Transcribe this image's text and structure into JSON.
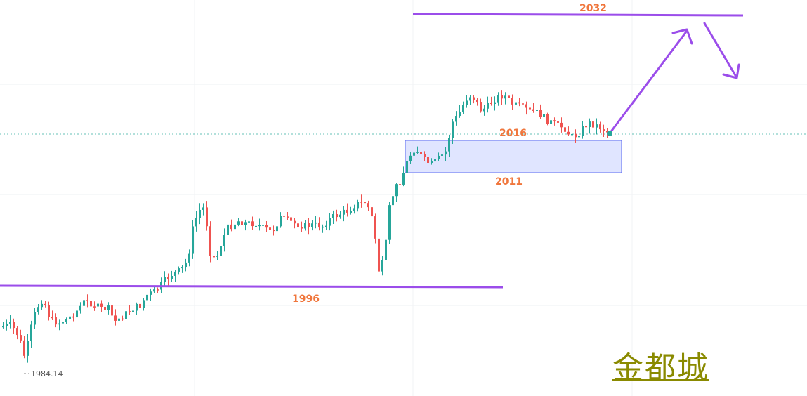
{
  "chart_data": {
    "type": "candlestick",
    "title": "",
    "xlabel": "",
    "ylabel": "",
    "grid": true,
    "last_price_line": true,
    "colors": {
      "up": "#26a69a",
      "down": "#ef5350",
      "annotation": "#9b4dea",
      "zone_fill": "#dbe0ff",
      "zone_border": "#5c6bf0",
      "label": "#f0763c"
    },
    "low_marker": "1984.14",
    "annotations": {
      "level_1996": "1996",
      "level_2032": "2032",
      "zone_top": "2016",
      "zone_bottom": "2011"
    },
    "projection": [
      "up",
      "down"
    ]
  },
  "watermark": {
    "text": "金都城"
  }
}
